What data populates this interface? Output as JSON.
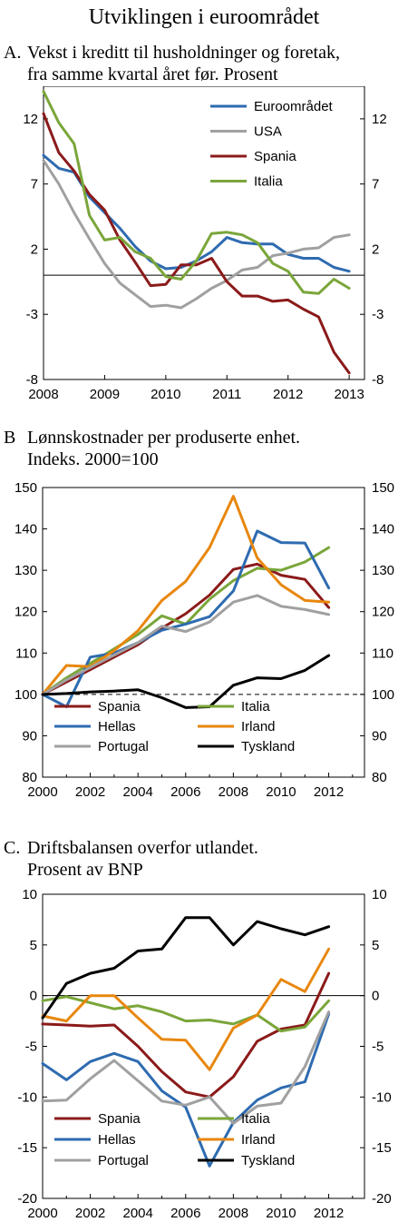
{
  "page": {
    "title": "Utviklingen i euroområdet"
  },
  "chart_data": [
    {
      "letter": "A.",
      "title_line1": "Vekst i kreditt til husholdninger og foretak,",
      "title_line2": "fra samme kvartal året før. Prosent",
      "type": "line",
      "xlim": [
        2008,
        2013.25
      ],
      "ylim": [
        -8,
        14.5
      ],
      "xticks": [
        2008,
        2009,
        2010,
        2011,
        2012,
        2013
      ],
      "yticks": [
        -8,
        -3,
        2,
        7,
        12
      ],
      "reference_line": 0,
      "reference_style": "solid",
      "legend_position": "top-right",
      "legend_columns": 1,
      "grid": false,
      "series": [
        {
          "name": "Euroområdet",
          "color": "#2e6bb0",
          "x": [
            2008.0,
            2008.25,
            2008.5,
            2008.75,
            2009.0,
            2009.25,
            2009.5,
            2009.75,
            2010.0,
            2010.25,
            2010.5,
            2010.75,
            2011.0,
            2011.25,
            2011.5,
            2011.75,
            2012.0,
            2012.25,
            2012.5,
            2012.75,
            2013.0
          ],
          "y": [
            9.2,
            8.2,
            7.9,
            6.0,
            4.8,
            3.6,
            2.2,
            1.1,
            0.5,
            0.6,
            1.1,
            1.8,
            2.9,
            2.5,
            2.4,
            2.4,
            1.6,
            1.3,
            1.3,
            0.6,
            0.3
          ]
        },
        {
          "name": "USA",
          "color": "#a0a0a0",
          "x": [
            2008.0,
            2008.25,
            2008.5,
            2008.75,
            2009.0,
            2009.25,
            2009.5,
            2009.75,
            2010.0,
            2010.25,
            2010.5,
            2010.75,
            2011.0,
            2011.25,
            2011.5,
            2011.75,
            2012.0,
            2012.25,
            2012.5,
            2012.75,
            2013.0
          ],
          "y": [
            8.8,
            7.0,
            4.8,
            2.8,
            0.9,
            -0.6,
            -1.5,
            -2.4,
            -2.3,
            -2.5,
            -1.8,
            -1.0,
            -0.4,
            0.4,
            0.6,
            1.5,
            1.7,
            2.0,
            2.1,
            2.9,
            3.1
          ]
        },
        {
          "name": "Spania",
          "color": "#8b1a1a",
          "x": [
            2008.0,
            2008.25,
            2008.5,
            2008.75,
            2009.0,
            2009.25,
            2009.5,
            2009.75,
            2010.0,
            2010.25,
            2010.5,
            2010.75,
            2011.0,
            2011.25,
            2011.5,
            2011.75,
            2012.0,
            2012.25,
            2012.5,
            2012.75,
            2013.0
          ],
          "y": [
            12.4,
            9.4,
            8.0,
            6.2,
            5.0,
            2.7,
            1.0,
            -0.8,
            -0.7,
            0.8,
            0.8,
            1.3,
            -0.5,
            -1.6,
            -1.6,
            -2.0,
            -1.9,
            -2.6,
            -3.2,
            -5.9,
            -7.5
          ]
        },
        {
          "name": "Italia",
          "color": "#7aa63a",
          "x": [
            2008.0,
            2008.25,
            2008.5,
            2008.75,
            2009.0,
            2009.25,
            2009.5,
            2009.75,
            2010.0,
            2010.25,
            2010.5,
            2010.75,
            2011.0,
            2011.25,
            2011.5,
            2011.75,
            2012.0,
            2012.25,
            2012.5,
            2012.75,
            2013.0
          ],
          "y": [
            14.1,
            11.7,
            10.1,
            4.6,
            2.7,
            2.9,
            1.8,
            1.3,
            -0.1,
            -0.3,
            1.1,
            3.2,
            3.3,
            3.1,
            2.5,
            0.9,
            0.3,
            -1.3,
            -1.4,
            -0.3,
            -1.0
          ]
        }
      ]
    },
    {
      "letter": "B",
      "title_line1": "Lønnskostnader per produserte enhet.",
      "title_line2": "Indeks. 2000=100",
      "type": "line",
      "xlim": [
        2000,
        2013.5
      ],
      "ylim": [
        80,
        150
      ],
      "xticks": [
        2000,
        2002,
        2004,
        2006,
        2008,
        2010,
        2012
      ],
      "yticks": [
        80,
        90,
        100,
        110,
        120,
        130,
        140,
        150
      ],
      "reference_line": 100,
      "reference_style": "dashed",
      "legend_position": "bottom",
      "legend_columns": 2,
      "grid": false,
      "series": [
        {
          "name": "Spania",
          "color": "#8b1a1a",
          "x": [
            2000,
            2001,
            2002,
            2003,
            2004,
            2005,
            2006,
            2007,
            2008,
            2009,
            2010,
            2011,
            2012
          ],
          "y": [
            100,
            103.0,
            106.0,
            109.0,
            112.0,
            116.0,
            119.5,
            124.0,
            130.2,
            131.5,
            128.8,
            127.8,
            121.0
          ]
        },
        {
          "name": "Italia",
          "color": "#7aa63a",
          "x": [
            2000,
            2001,
            2002,
            2003,
            2004,
            2005,
            2006,
            2007,
            2008,
            2009,
            2010,
            2011,
            2012
          ],
          "y": [
            100,
            104.0,
            107.5,
            111.0,
            114.5,
            119.0,
            117.0,
            123.0,
            127.5,
            130.5,
            130.0,
            132.0,
            135.5
          ]
        },
        {
          "name": "Hellas",
          "color": "#2e6bb0",
          "x": [
            2000,
            2001,
            2002,
            2003,
            2004,
            2005,
            2006,
            2007,
            2008,
            2009,
            2010,
            2011,
            2012
          ],
          "y": [
            100,
            97.0,
            109.0,
            110.0,
            112.5,
            115.5,
            117.0,
            118.8,
            125.0,
            139.5,
            136.7,
            136.6,
            125.7
          ]
        },
        {
          "name": "Irland",
          "color": "#e8870e",
          "x": [
            2000,
            2001,
            2002,
            2003,
            2004,
            2005,
            2006,
            2007,
            2008,
            2009,
            2010,
            2011,
            2012
          ],
          "y": [
            100,
            107.0,
            106.7,
            110.6,
            115.4,
            122.7,
            127.3,
            135.5,
            147.9,
            133.0,
            126.5,
            122.7,
            122.3
          ]
        },
        {
          "name": "Portugal",
          "color": "#a0a0a0",
          "x": [
            2000,
            2001,
            2002,
            2003,
            2004,
            2005,
            2006,
            2007,
            2008,
            2009,
            2010,
            2011,
            2012
          ],
          "y": [
            100,
            103.5,
            106.5,
            109.5,
            112.5,
            116.5,
            115.2,
            117.5,
            122.3,
            123.9,
            121.3,
            120.5,
            119.3
          ]
        },
        {
          "name": "Tyskland",
          "color": "#000000",
          "x": [
            2000,
            2001,
            2002,
            2003,
            2004,
            2005,
            2006,
            2007,
            2008,
            2009,
            2010,
            2011,
            2012
          ],
          "y": [
            100,
            100.2,
            100.6,
            100.8,
            101.1,
            99.2,
            96.8,
            97.0,
            102.2,
            104.0,
            103.8,
            105.8,
            109.4
          ]
        }
      ]
    },
    {
      "letter": "C.",
      "title_line1": "Driftsbalansen overfor utlandet.",
      "title_line2": "Prosent av BNP",
      "type": "line",
      "xlim": [
        2000,
        2013.5
      ],
      "ylim": [
        -20,
        10
      ],
      "xticks": [
        2000,
        2002,
        2004,
        2006,
        2008,
        2010,
        2012
      ],
      "yticks": [
        -20,
        -15,
        -10,
        -5,
        0,
        5,
        10
      ],
      "reference_line": 0,
      "reference_style": "solid",
      "legend_position": "bottom",
      "legend_columns": 2,
      "grid": false,
      "series": [
        {
          "name": "Spania",
          "color": "#8b1a1a",
          "x": [
            2000,
            2001,
            2002,
            2003,
            2004,
            2005,
            2006,
            2007,
            2008,
            2009,
            2010,
            2011,
            2012
          ],
          "y": [
            -2.8,
            -2.9,
            -3.0,
            -2.9,
            -5.0,
            -7.5,
            -9.5,
            -10.0,
            -8.0,
            -4.5,
            -3.3,
            -2.9,
            2.2
          ]
        },
        {
          "name": "Italia",
          "color": "#7aa63a",
          "x": [
            2000,
            2001,
            2002,
            2003,
            2004,
            2005,
            2006,
            2007,
            2008,
            2009,
            2010,
            2011,
            2012
          ],
          "y": [
            -0.5,
            -0.1,
            -0.7,
            -1.3,
            -1.0,
            -1.6,
            -2.5,
            -2.4,
            -2.8,
            -1.9,
            -3.5,
            -3.1,
            -0.5
          ]
        },
        {
          "name": "Hellas",
          "color": "#2e6bb0",
          "x": [
            2000,
            2001,
            2002,
            2003,
            2004,
            2005,
            2006,
            2007,
            2008,
            2009,
            2010,
            2011,
            2012
          ],
          "y": [
            -6.7,
            -8.3,
            -6.5,
            -5.7,
            -6.5,
            -9.4,
            -11.0,
            -16.8,
            -12.5,
            -10.3,
            -9.1,
            -8.5,
            -1.8
          ]
        },
        {
          "name": "Irland",
          "color": "#e8870e",
          "x": [
            2000,
            2001,
            2002,
            2003,
            2004,
            2005,
            2006,
            2007,
            2008,
            2009,
            2010,
            2011,
            2012
          ],
          "y": [
            -2.0,
            -2.5,
            0,
            0,
            -2.2,
            -4.3,
            -4.4,
            -7.3,
            -3.2,
            -1.9,
            1.6,
            0.4,
            4.6
          ]
        },
        {
          "name": "Portugal",
          "color": "#a0a0a0",
          "x": [
            2000,
            2001,
            2002,
            2003,
            2004,
            2005,
            2006,
            2007,
            2008,
            2009,
            2010,
            2011,
            2012
          ],
          "y": [
            -10.4,
            -10.3,
            -8.2,
            -6.4,
            -8.4,
            -10.4,
            -10.8,
            -10.0,
            -12.6,
            -10.9,
            -10.6,
            -7.0,
            -1.6
          ]
        },
        {
          "name": "Tyskland",
          "color": "#000000",
          "x": [
            2000,
            2001,
            2002,
            2003,
            2004,
            2005,
            2006,
            2007,
            2008,
            2009,
            2010,
            2011,
            2012
          ],
          "y": [
            -2.2,
            1.2,
            2.2,
            2.7,
            4.4,
            4.6,
            7.7,
            7.7,
            5.0,
            7.3,
            6.6,
            6.0,
            6.8
          ]
        }
      ]
    }
  ]
}
